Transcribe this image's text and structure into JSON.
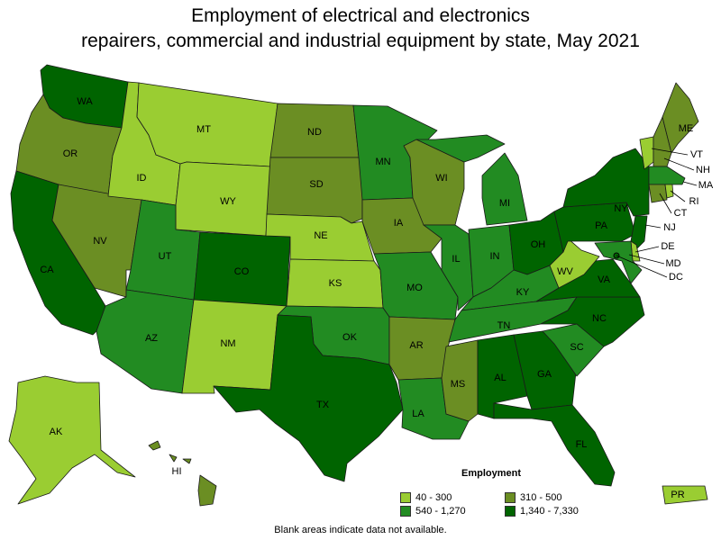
{
  "title": {
    "line1": "Employment of electrical and electronics",
    "line2": "repairers, commercial and industrial equipment by state, May 2021"
  },
  "colors": {
    "c1": "#9acd32",
    "c2": "#6b8e23",
    "c3": "#228b22",
    "c4": "#006400",
    "border": "#1a1a1a"
  },
  "legend": {
    "title": "Employment",
    "items": [
      {
        "label": "40 - 300",
        "color": "#9acd32"
      },
      {
        "label": "310 - 500",
        "color": "#6b8e23"
      },
      {
        "label": "540 - 1,270",
        "color": "#228b22"
      },
      {
        "label": "1,340 - 7,330",
        "color": "#006400"
      }
    ]
  },
  "footnote": "Blank areas indicate data not available.",
  "states": {
    "WA": {
      "label": "WA",
      "class": 4
    },
    "OR": {
      "label": "OR",
      "class": 2
    },
    "CA": {
      "label": "CA",
      "class": 4
    },
    "NV": {
      "label": "NV",
      "class": 2
    },
    "ID": {
      "label": "ID",
      "class": 1
    },
    "MT": {
      "label": "MT",
      "class": 1
    },
    "WY": {
      "label": "WY",
      "class": 1
    },
    "UT": {
      "label": "UT",
      "class": 3
    },
    "AZ": {
      "label": "AZ",
      "class": 3
    },
    "CO": {
      "label": "CO",
      "class": 4
    },
    "NM": {
      "label": "NM",
      "class": 1
    },
    "ND": {
      "label": "ND",
      "class": 2
    },
    "SD": {
      "label": "SD",
      "class": 2
    },
    "NE": {
      "label": "NE",
      "class": 1
    },
    "KS": {
      "label": "KS",
      "class": 1
    },
    "OK": {
      "label": "OK",
      "class": 3
    },
    "TX": {
      "label": "TX",
      "class": 4
    },
    "MN": {
      "label": "MN",
      "class": 3
    },
    "IA": {
      "label": "IA",
      "class": 2
    },
    "MO": {
      "label": "MO",
      "class": 3
    },
    "AR": {
      "label": "AR",
      "class": 2
    },
    "LA": {
      "label": "LA",
      "class": 3
    },
    "WI": {
      "label": "WI",
      "class": 2
    },
    "IL": {
      "label": "IL",
      "class": 3
    },
    "MI": {
      "label": "MI",
      "class": 3
    },
    "IN": {
      "label": "IN",
      "class": 3
    },
    "OH": {
      "label": "OH",
      "class": 4
    },
    "KY": {
      "label": "KY",
      "class": 3
    },
    "TN": {
      "label": "TN",
      "class": 3
    },
    "MS": {
      "label": "MS",
      "class": 2
    },
    "AL": {
      "label": "AL",
      "class": 4
    },
    "GA": {
      "label": "GA",
      "class": 4
    },
    "FL": {
      "label": "FL",
      "class": 4
    },
    "SC": {
      "label": "SC",
      "class": 3
    },
    "NC": {
      "label": "NC",
      "class": 4
    },
    "VA": {
      "label": "VA",
      "class": 4
    },
    "WV": {
      "label": "WV",
      "class": 1
    },
    "PA": {
      "label": "PA",
      "class": 4
    },
    "NY": {
      "label": "NY",
      "class": 4
    },
    "VT": {
      "label": "VT",
      "class": 1
    },
    "NH": {
      "label": "NH",
      "class": 2
    },
    "ME": {
      "label": "ME",
      "class": 2
    },
    "MA": {
      "label": "MA",
      "class": 3
    },
    "CT": {
      "label": "CT",
      "class": 2
    },
    "RI": {
      "label": "RI",
      "class": 1
    },
    "NJ": {
      "label": "NJ",
      "class": 4
    },
    "DE": {
      "label": "DE",
      "class": 1
    },
    "MD": {
      "label": "MD",
      "class": 3
    },
    "DC": {
      "label": "DC",
      "class": 4
    },
    "AK": {
      "label": "AK",
      "class": 1
    },
    "HI": {
      "label": "HI",
      "class": 2
    },
    "PR": {
      "label": "PR",
      "class": 1
    }
  }
}
